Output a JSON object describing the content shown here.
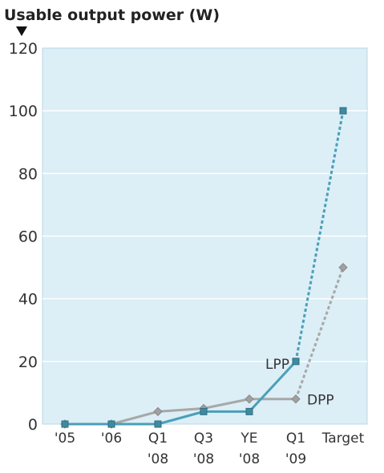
{
  "chart_data": {
    "type": "line",
    "title": "Usable output power (W)",
    "ylim": [
      0,
      120
    ],
    "yticks": [
      "0",
      "20",
      "40",
      "60",
      "80",
      "100",
      "120"
    ],
    "categories": [
      {
        "line1": "'05",
        "line2": ""
      },
      {
        "line1": "'06",
        "line2": ""
      },
      {
        "line1": "Q1",
        "line2": "'08"
      },
      {
        "line1": "Q3",
        "line2": "'08"
      },
      {
        "line1": "YE",
        "line2": "'08"
      },
      {
        "line1": "Q1",
        "line2": "'09"
      },
      {
        "line1": "Target",
        "line2": ""
      }
    ],
    "grid": true,
    "series": [
      {
        "name": "LPP",
        "color": "#4a9fb8",
        "marker": "square",
        "values": [
          0,
          0,
          0,
          4,
          4,
          20,
          100
        ],
        "dashed_from_index": 5
      },
      {
        "name": "DPP",
        "color": "#a8a8a8",
        "marker": "diamond",
        "values": [
          0,
          0,
          4,
          5,
          8,
          8,
          50
        ],
        "dashed_from_index": 5
      }
    ],
    "colors": {
      "plot_background": "#dceef6",
      "grid": "#ffffff",
      "frame": "#b8d8e6"
    }
  }
}
